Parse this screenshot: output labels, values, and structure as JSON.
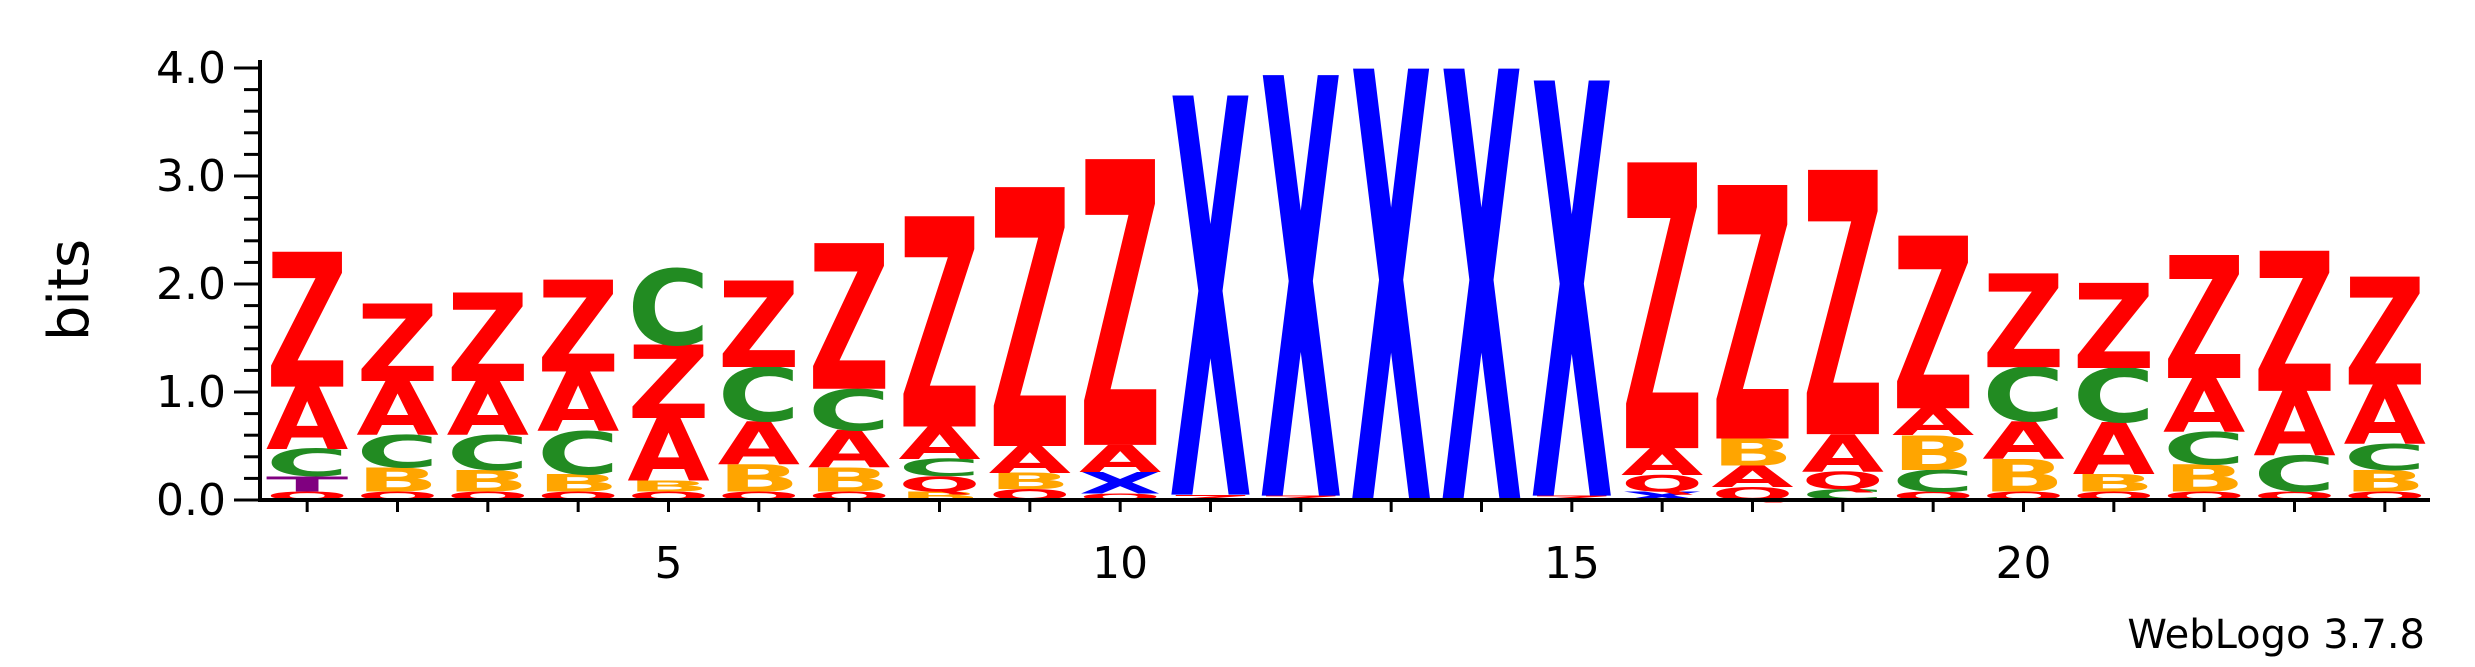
{
  "chart_data": {
    "type": "sequence-logo",
    "ylabel": "bits",
    "ylim": [
      0,
      4.0
    ],
    "y_ticks": [
      "0.0",
      "1.0",
      "2.0",
      "3.0",
      "4.0"
    ],
    "x_ticks": [
      5,
      10,
      15,
      20
    ],
    "positions": [
      1,
      24
    ],
    "credit": "WebLogo 3.7.8",
    "colors": {
      "Z": "#ff0000",
      "A": "#ff0000",
      "Q": "#ff0000",
      "X": "#0000ff",
      "C": "#228b22",
      "B": "#ffa500",
      "T": "#800080"
    },
    "columns": [
      {
        "pos": 1,
        "stack": [
          [
            "Q",
            0.08
          ],
          [
            "T",
            0.14
          ],
          [
            "C",
            0.25
          ],
          [
            "A",
            0.58
          ],
          [
            "Z",
            1.25
          ]
        ]
      },
      {
        "pos": 2,
        "stack": [
          [
            "Q",
            0.08
          ],
          [
            "B",
            0.22
          ],
          [
            "C",
            0.3
          ],
          [
            "A",
            0.5
          ],
          [
            "Z",
            0.72
          ]
        ]
      },
      {
        "pos": 3,
        "stack": [
          [
            "Q",
            0.08
          ],
          [
            "B",
            0.2
          ],
          [
            "C",
            0.32
          ],
          [
            "A",
            0.5
          ],
          [
            "Z",
            0.82
          ]
        ]
      },
      {
        "pos": 4,
        "stack": [
          [
            "Q",
            0.08
          ],
          [
            "B",
            0.16
          ],
          [
            "C",
            0.4
          ],
          [
            "A",
            0.55
          ],
          [
            "Z",
            0.85
          ]
        ]
      },
      {
        "pos": 5,
        "stack": [
          [
            "Q",
            0.08
          ],
          [
            "B",
            0.1
          ],
          [
            "A",
            0.58
          ],
          [
            "Z",
            0.68
          ],
          [
            "C",
            0.7
          ]
        ]
      },
      {
        "pos": 6,
        "stack": [
          [
            "Q",
            0.08
          ],
          [
            "B",
            0.25
          ],
          [
            "A",
            0.4
          ],
          [
            "C",
            0.5
          ],
          [
            "Z",
            0.8
          ]
        ]
      },
      {
        "pos": 7,
        "stack": [
          [
            "Q",
            0.08
          ],
          [
            "B",
            0.22
          ],
          [
            "A",
            0.35
          ],
          [
            "C",
            0.38
          ],
          [
            "Z",
            1.35
          ]
        ]
      },
      {
        "pos": 8,
        "stack": [
          [
            "B",
            0.08
          ],
          [
            "Q",
            0.14
          ],
          [
            "C",
            0.16
          ],
          [
            "A",
            0.3
          ],
          [
            "Z",
            1.95
          ]
        ]
      },
      {
        "pos": 9,
        "stack": [
          [
            "Q",
            0.1
          ],
          [
            "B",
            0.15
          ],
          [
            "A",
            0.25
          ],
          [
            "Z",
            2.4
          ]
        ]
      },
      {
        "pos": 10,
        "stack": [
          [
            "Q",
            0.06
          ],
          [
            "X",
            0.2
          ],
          [
            "A",
            0.25
          ],
          [
            "Z",
            2.65
          ]
        ]
      },
      {
        "pos": 11,
        "stack": [
          [
            "Z",
            0.05
          ],
          [
            "X",
            3.7
          ]
        ]
      },
      {
        "pos": 12,
        "stack": [
          [
            "Z",
            0.04
          ],
          [
            "X",
            3.9
          ]
        ]
      },
      {
        "pos": 13,
        "stack": [
          [
            "X",
            4.0
          ]
        ]
      },
      {
        "pos": 14,
        "stack": [
          [
            "X",
            4.0
          ]
        ]
      },
      {
        "pos": 15,
        "stack": [
          [
            "Z",
            0.04
          ],
          [
            "X",
            3.85
          ]
        ]
      },
      {
        "pos": 16,
        "stack": [
          [
            "X",
            0.08
          ],
          [
            "Q",
            0.15
          ],
          [
            "A",
            0.25
          ],
          [
            "Z",
            2.65
          ]
        ]
      },
      {
        "pos": 17,
        "stack": [
          [
            "Q",
            0.12
          ],
          [
            "A",
            0.2
          ],
          [
            "B",
            0.25
          ],
          [
            "Z",
            2.35
          ]
        ]
      },
      {
        "pos": 18,
        "stack": [
          [
            "C",
            0.1
          ],
          [
            "Q",
            0.16
          ],
          [
            "A",
            0.35
          ],
          [
            "Z",
            2.45
          ]
        ]
      },
      {
        "pos": 19,
        "stack": [
          [
            "Q",
            0.08
          ],
          [
            "C",
            0.2
          ],
          [
            "B",
            0.32
          ],
          [
            "A",
            0.25
          ],
          [
            "Z",
            1.6
          ]
        ]
      },
      {
        "pos": 20,
        "stack": [
          [
            "Q",
            0.08
          ],
          [
            "B",
            0.3
          ],
          [
            "A",
            0.35
          ],
          [
            "C",
            0.5
          ],
          [
            "Z",
            0.87
          ]
        ]
      },
      {
        "pos": 21,
        "stack": [
          [
            "Q",
            0.08
          ],
          [
            "B",
            0.16
          ],
          [
            "A",
            0.48
          ],
          [
            "C",
            0.5
          ],
          [
            "Z",
            0.79
          ]
        ]
      },
      {
        "pos": 22,
        "stack": [
          [
            "Q",
            0.08
          ],
          [
            "B",
            0.25
          ],
          [
            "C",
            0.3
          ],
          [
            "A",
            0.5
          ],
          [
            "Z",
            1.14
          ]
        ]
      },
      {
        "pos": 23,
        "stack": [
          [
            "Q",
            0.08
          ],
          [
            "C",
            0.33
          ],
          [
            "A",
            0.6
          ],
          [
            "Z",
            1.3
          ]
        ]
      },
      {
        "pos": 24,
        "stack": [
          [
            "Q",
            0.08
          ],
          [
            "B",
            0.2
          ],
          [
            "C",
            0.24
          ],
          [
            "A",
            0.55
          ],
          [
            "Z",
            1.0
          ]
        ]
      }
    ]
  }
}
